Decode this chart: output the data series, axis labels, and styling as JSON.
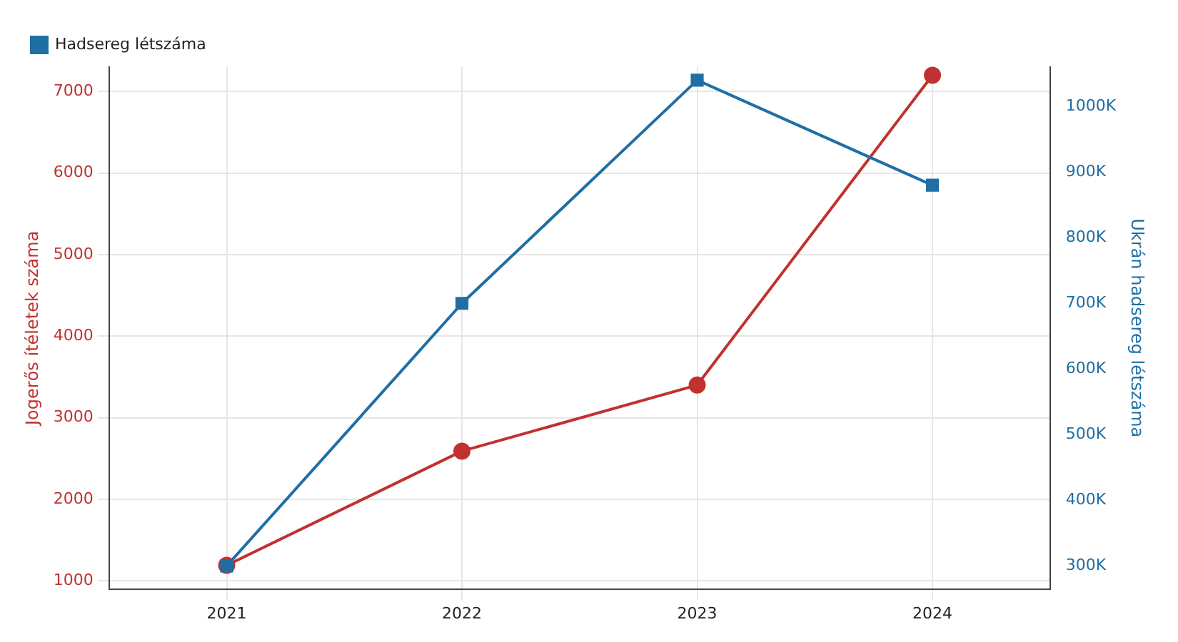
{
  "chart_data": {
    "type": "line",
    "categories": [
      "2021",
      "2022",
      "2023",
      "2024"
    ],
    "series": [
      {
        "color": "#c0312f",
        "marker": "circle",
        "values": [
          1190,
          2590,
          3400,
          7200
        ]
      },
      {
        "name": "Hadsereg létszáma",
        "color": "#1f6fa5",
        "marker": "square",
        "axis": "y2",
        "values": [
          300000,
          700000,
          1040000,
          880000
        ]
      }
    ],
    "ylabel": "Jogerős ítéletek száma",
    "y2label": "Ukrán hadsereg létszáma",
    "ylim": [
      900,
      7300
    ],
    "yticks": [
      1000,
      2000,
      3000,
      4000,
      5000,
      6000,
      7000
    ],
    "y2lim": [
      265000,
      1060000
    ],
    "y2ticks": [
      {
        "value": 300000,
        "label": "300K"
      },
      {
        "value": 400000,
        "label": "400K"
      },
      {
        "value": 500000,
        "label": "500K"
      },
      {
        "value": 600000,
        "label": "600K"
      },
      {
        "value": 700000,
        "label": "700K"
      },
      {
        "value": 800000,
        "label": "800K"
      },
      {
        "value": 900000,
        "label": "900K"
      },
      {
        "value": 1000000,
        "label": "1000K"
      }
    ],
    "grid": true,
    "legend": "top left"
  }
}
